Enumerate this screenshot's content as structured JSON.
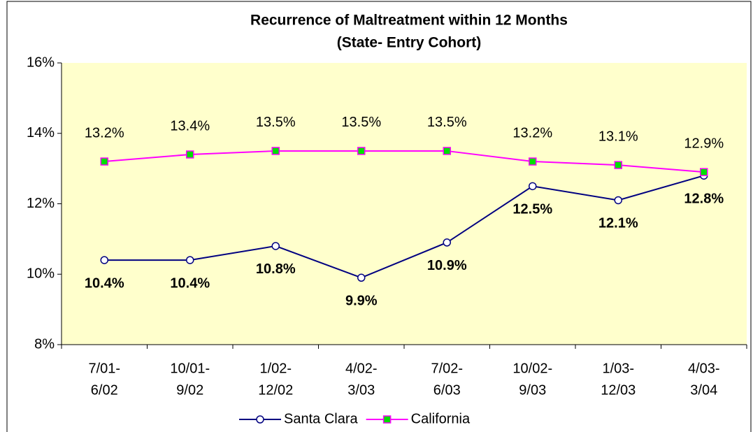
{
  "chart_data": {
    "type": "line",
    "title": "Recurrence of Maltreatment within 12 Months",
    "subtitle": "(State- Entry Cohort)",
    "categories": [
      [
        "7/01-",
        "6/02"
      ],
      [
        "10/01-",
        "9/02"
      ],
      [
        "1/02-",
        "12/02"
      ],
      [
        "4/02-",
        "3/03"
      ],
      [
        "7/02-",
        "6/03"
      ],
      [
        "10/02-",
        "9/03"
      ],
      [
        "1/03-",
        "12/03"
      ],
      [
        "4/03-",
        "3/04"
      ]
    ],
    "series": [
      {
        "name": "Santa Clara",
        "color": "#000080",
        "marker_fill": "#ffffff",
        "marker": "circle",
        "values": [
          10.4,
          10.4,
          10.8,
          9.9,
          10.9,
          12.5,
          12.1,
          12.8
        ],
        "value_labels": [
          "10.4%",
          "10.4%",
          "10.8%",
          "9.9%",
          "10.9%",
          "12.5%",
          "12.1%",
          "12.8%"
        ]
      },
      {
        "name": "California",
        "color": "#ff00ff",
        "marker_fill": "#00e000",
        "marker": "square",
        "values": [
          13.2,
          13.4,
          13.5,
          13.5,
          13.5,
          13.2,
          13.1,
          12.9
        ],
        "value_labels": [
          "13.2%",
          "13.4%",
          "13.5%",
          "13.5%",
          "13.5%",
          "13.2%",
          "13.1%",
          "12.9%"
        ]
      }
    ],
    "ylim": [
      8,
      16
    ],
    "yticks": [
      {
        "value": 8,
        "label": "8%"
      },
      {
        "value": 10,
        "label": "10%"
      },
      {
        "value": 12,
        "label": "12%"
      },
      {
        "value": 14,
        "label": "14%"
      },
      {
        "value": 16,
        "label": "16%"
      }
    ],
    "legend": "bottom",
    "plot_background": "#ffffcc"
  }
}
